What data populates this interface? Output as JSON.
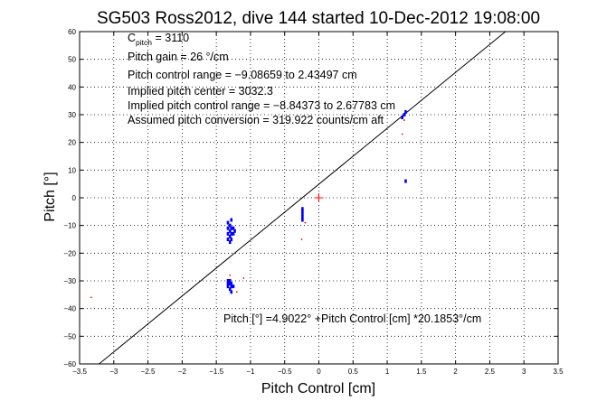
{
  "chart_data": {
    "type": "scatter",
    "title": "SG503 Ross2012, dive 144 started 10-Dec-2012 19:08:00",
    "xlabel": "Pitch Control [cm]",
    "ylabel": "Pitch [°]",
    "xlim": [
      -3.5,
      3.5
    ],
    "ylim": [
      -60,
      60
    ],
    "grid": true,
    "x_ticks": [
      -3.5,
      -3,
      -2.5,
      -2,
      -1.5,
      -1,
      -0.5,
      0,
      0.5,
      1,
      1.5,
      2,
      2.5,
      3,
      3.5
    ],
    "x_tick_labels": [
      "−3.5",
      "−3",
      "−2.5",
      "−2",
      "−1.5",
      "−1",
      "−0.5",
      "0",
      "0.5",
      "1",
      "1.5",
      "2",
      "2.5",
      "3",
      "3.5"
    ],
    "y_ticks": [
      -60,
      -50,
      -40,
      -30,
      -20,
      -10,
      0,
      10,
      20,
      30,
      40,
      50,
      60
    ],
    "y_tick_labels": [
      "−60",
      "−50",
      "−40",
      "−30",
      "−20",
      "−10",
      "0",
      "10",
      "20",
      "30",
      "40",
      "50",
      "60"
    ],
    "annotations": {
      "c_pitch_main": "C",
      "c_pitch_sub": "pitch",
      "c_pitch_value": " = 3110",
      "gain": "Pitch gain = 26 °/cm",
      "control_range": "Pitch control range = −9.08659 to 2.43497 cm",
      "implied_center": "Implied pitch center = 3032.3",
      "implied_range": "Implied pitch control range = −8.84373 to 2.67783 cm",
      "conversion": "Assumed pitch conversion = 319.922 counts/cm aft",
      "fit": "Pitch [°] =4.9022° +Pitch Control [cm] *20.1853°/cm"
    },
    "fit_line": {
      "intercept": 4.9022,
      "slope": 20.1853
    },
    "colors": {
      "data": "#0000ff",
      "outlier": "#ff0000",
      "marker": "#ff0000",
      "line": "#000000",
      "grid": "#000000"
    },
    "series": [
      {
        "role": "data",
        "points": [
          [
            -1.33,
            -9
          ],
          [
            -1.33,
            -11
          ],
          [
            -1.33,
            -13
          ],
          [
            -1.33,
            -15
          ],
          [
            -1.3,
            -10
          ],
          [
            -1.3,
            -12
          ],
          [
            -1.3,
            -14
          ],
          [
            -1.3,
            -16
          ],
          [
            -1.28,
            -8
          ],
          [
            -1.28,
            -11
          ],
          [
            -1.28,
            -13
          ],
          [
            -1.28,
            -15
          ],
          [
            -1.25,
            -11
          ],
          [
            -1.25,
            -13
          ],
          [
            -1.23,
            -12
          ],
          [
            -1.33,
            -30
          ],
          [
            -1.33,
            -31
          ],
          [
            -1.33,
            -32
          ],
          [
            -1.3,
            -30
          ],
          [
            -1.3,
            -31
          ],
          [
            -1.3,
            -33
          ],
          [
            -1.28,
            -31
          ],
          [
            -1.28,
            -32
          ],
          [
            -1.28,
            -34
          ],
          [
            -1.25,
            -32
          ],
          [
            -0.24,
            -4
          ],
          [
            -0.24,
            -5
          ],
          [
            -0.24,
            -6
          ],
          [
            -0.24,
            -7
          ],
          [
            -0.24,
            -8
          ],
          [
            1.22,
            29
          ],
          [
            1.25,
            30
          ],
          [
            1.27,
            31
          ],
          [
            1.27,
            6
          ]
        ]
      },
      {
        "role": "outliers",
        "points": [
          [
            -3.33,
            -36
          ],
          [
            -1.3,
            -28
          ],
          [
            -1.2,
            -34
          ],
          [
            -1.1,
            -29
          ],
          [
            -0.25,
            -15
          ],
          [
            -0.2,
            -9
          ],
          [
            1.22,
            23
          ],
          [
            1.25,
            28
          ]
        ]
      },
      {
        "role": "marker",
        "points": [
          [
            0,
            0
          ]
        ]
      }
    ]
  }
}
